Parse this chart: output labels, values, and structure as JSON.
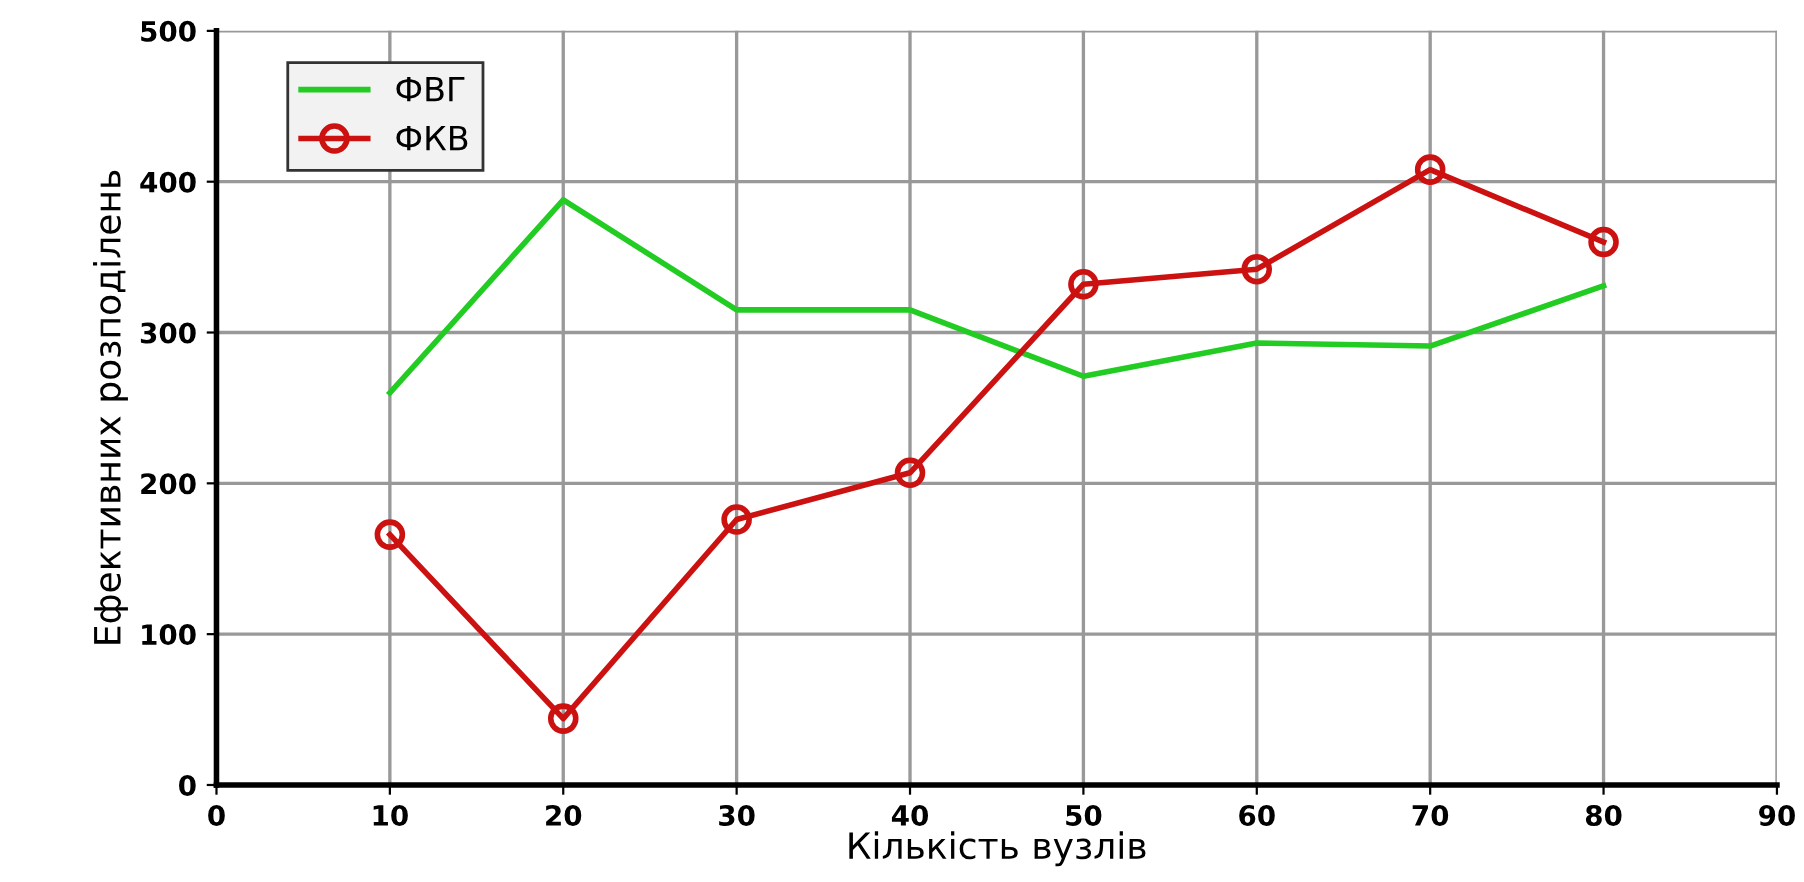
{
  "chart_data": {
    "type": "line",
    "xlabel": "Кількість вузлів",
    "ylabel": "Ефективних розподілень",
    "x": [
      10,
      20,
      30,
      40,
      50,
      60,
      70,
      80
    ],
    "series": [
      {
        "name": "ФВГ",
        "color": "#22cc22",
        "marker": "none",
        "values": [
          260,
          388,
          315,
          315,
          271,
          293,
          291,
          331
        ]
      },
      {
        "name": "ФКВ",
        "color": "#cc1111",
        "marker": "circle",
        "values": [
          166,
          44,
          176,
          207,
          332,
          342,
          408,
          360
        ]
      }
    ],
    "xlim": [
      0,
      90
    ],
    "xticks": [
      0,
      10,
      20,
      30,
      40,
      50,
      60,
      70,
      80,
      90
    ],
    "ylim": [
      0,
      500
    ],
    "yticks": [
      0,
      100,
      200,
      300,
      400,
      500
    ],
    "grid": true,
    "legend": "top left"
  }
}
